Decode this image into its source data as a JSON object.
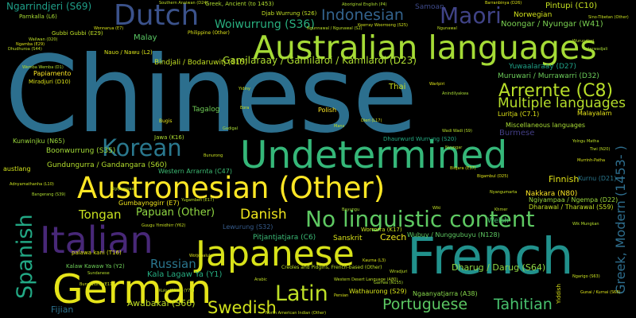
{
  "words": [
    {
      "text": "Chinese",
      "color": "#2c6f8e"
    },
    {
      "text": "Australian languages",
      "color": "#a5db36"
    },
    {
      "text": "Dutch",
      "color": "#3b528b"
    },
    {
      "text": "Maori",
      "color": "#404387"
    },
    {
      "text": "Indonesian",
      "color": "#33638d"
    },
    {
      "text": "Undetermined",
      "color": "#35b779"
    },
    {
      "text": "Austronesian (Other)",
      "color": "#fde725"
    },
    {
      "text": "Italian",
      "color": "#482878"
    },
    {
      "text": "Japanese",
      "color": "#d8e219"
    },
    {
      "text": "French",
      "color": "#21918c"
    },
    {
      "text": "German",
      "color": "#e5e419"
    },
    {
      "text": "Korean",
      "color": "#2a788e"
    },
    {
      "text": "No linguistic content",
      "color": "#5ec962"
    },
    {
      "text": "Latin",
      "color": "#bddf26"
    },
    {
      "text": "Spanish",
      "color": "#22a884"
    },
    {
      "text": "Arrernte (C8)",
      "color": "#b8de29"
    },
    {
      "text": "Multiple languages",
      "color": "#b5de2b"
    },
    {
      "text": "Portuguese",
      "color": "#5cc863"
    },
    {
      "text": "Tahitian",
      "color": "#48c16e"
    },
    {
      "text": "Swedish",
      "color": "#d0e11c"
    },
    {
      "text": "Danish",
      "color": "#efe51c"
    },
    {
      "text": "Russian",
      "color": "#2a768e"
    },
    {
      "text": "Tongan",
      "color": "#c8e020"
    },
    {
      "text": "Greek, Modern (1453- )",
      "color": "#2e6e8e"
    },
    {
      "text": "Papuan (Other)",
      "color": "#90d743"
    },
    {
      "text": "Gamilaraay / Gamilaroi / Kamilaroi (D23)",
      "color": "#addc30"
    },
    {
      "text": "Ngarrindjeri (S69)",
      "color": "#1f9f88"
    },
    {
      "text": "Woiwurrung (S36)",
      "color": "#29af7f"
    },
    {
      "text": "Noongar / Nyungar (W41)",
      "color": "#7ad151"
    },
    {
      "text": "Muruwari / Murrawarri (D32)",
      "color": "#6ccd5a"
    },
    {
      "text": "Dharug / Darug (S64)",
      "color": "#8fd744"
    },
    {
      "text": "Bindjali / Bodaruwitj (S15)",
      "color": "#c2df23"
    },
    {
      "text": "Norwegian",
      "color": "#d2e21b"
    },
    {
      "text": "Pintupi (C10)",
      "color": "#c5e021"
    },
    {
      "text": "Malay",
      "color": "#5ac864"
    },
    {
      "text": "Gumbaynggirr (E7)",
      "color": "#f1e51d"
    },
    {
      "text": "Yuwaalaraay (D27)",
      "color": "#1fa187"
    },
    {
      "text": "Burmese",
      "color": "#433e85"
    },
    {
      "text": "Nakkara (N80)",
      "color": "#fde725"
    },
    {
      "text": "Kala Lagaw Ya (Y1)",
      "color": "#26ad81"
    },
    {
      "text": "Awabakal (S66)",
      "color": "#c0df25"
    },
    {
      "text": "Fijian",
      "color": "#2c728e"
    },
    {
      "text": "Boonwurrung (S35)",
      "color": "#a2da37"
    },
    {
      "text": "Gundungurra / Gandangara (S60)",
      "color": "#b2dd2d"
    },
    {
      "text": "Western Arrarnta (C47)",
      "color": "#3dbc74"
    },
    {
      "text": "Finnish",
      "color": "#e2e418"
    },
    {
      "text": "Welsh",
      "color": "#46c06f"
    },
    {
      "text": "Czech",
      "color": "#ece51b"
    },
    {
      "text": "Sanskrit",
      "color": "#d8e219"
    },
    {
      "text": "Polish",
      "color": "#fde725"
    },
    {
      "text": "Thai",
      "color": "#c8e020"
    },
    {
      "text": "Tagalog",
      "color": "#70cf57"
    },
    {
      "text": "Miscellaneous languages",
      "color": "#a8db34"
    },
    {
      "text": "Luritja (C7.1)",
      "color": "#dde318"
    },
    {
      "text": "Malayalam",
      "color": "#e7e419"
    },
    {
      "text": "Pitjantjatjara (C6)",
      "color": "#3aba76"
    },
    {
      "text": "Lewurung (S32)",
      "color": "#365c8d"
    },
    {
      "text": "Dhaurwurd Wurrung (S20)",
      "color": "#24aa83"
    },
    {
      "text": "Ngiyampaa / Ngempa (D22)",
      "color": "#9bd93c"
    },
    {
      "text": "Dharawal / Tharawal (S59)",
      "color": "#c2df23"
    },
    {
      "text": "Wubuy / Nunggubuyu (N128)",
      "color": "#5ec962"
    },
    {
      "text": "Wathaurong (S29)",
      "color": "#d5e21a"
    },
    {
      "text": "Ngaanyatjarra (A38)",
      "color": "#85d54a"
    },
    {
      "text": "Kalaw Kawaw Ya (Y2)",
      "color": "#6ece58"
    },
    {
      "text": "palawa kani (T16)",
      "color": "#dde318"
    },
    {
      "text": "Papiamento",
      "color": "#fde725"
    },
    {
      "text": "Miradjuri (D10)",
      "color": "#dde318"
    },
    {
      "text": "Kunwinjku (N65)",
      "color": "#9bd93c"
    },
    {
      "text": "Samoan",
      "color": "#3e4a89"
    },
    {
      "text": "Djab Wurrung (S26)",
      "color": "#c0df25"
    },
    {
      "text": "Greek, Ancient (to 1453)",
      "color": "#addc30"
    },
    {
      "text": "Parnkalla (L6)",
      "color": "#a8db34"
    },
    {
      "text": "Gubbi Gubbi (E29)",
      "color": "#bddf26"
    },
    {
      "text": "Nauo / Nawu (L2)",
      "color": "#d8e219"
    },
    {
      "text": "Philippine (Other)",
      "color": "#dde318"
    },
    {
      "text": "Kurnu (D21)",
      "color": "#2a788e"
    },
    {
      "text": "Worrorra (K17)",
      "color": "#c8e020"
    },
    {
      "text": "Yiddish",
      "color": "#dde318"
    },
    {
      "text": "Creoles and Pidgins, French-based (Other)",
      "color": "#bddf26"
    },
    {
      "text": "Jawa (K16)",
      "color": "#addc30"
    },
    {
      "text": "Bugis",
      "color": "#e7e419"
    },
    {
      "text": "austlang",
      "color": "#d0e11c"
    }
  ],
  "tiny_words": [
    {
      "text": "Southern Anaiwan (D24)",
      "color": "#c0df25"
    },
    {
      "text": "Aboriginal English (P4)",
      "color": "#addc30"
    },
    {
      "text": "Barranbinya (D26)",
      "color": "#dde318"
    },
    {
      "text": "Sino-Tibetan (Other)",
      "color": "#c8e020"
    },
    {
      "text": "Ngunnawal / Ngunawal (S2)",
      "color": "#bddf26"
    },
    {
      "text": "Keerray Woorroong (S25)",
      "color": "#d0e11c"
    },
    {
      "text": "Wurundjeri",
      "color": "#b8de29"
    },
    {
      "text": "Jarwadjali",
      "color": "#a8db34"
    },
    {
      "text": "Ngunawal",
      "color": "#c2df23"
    },
    {
      "text": "Ngamba (E29)",
      "color": "#dde318"
    },
    {
      "text": "Wonnarua (E7)",
      "color": "#d8e219"
    },
    {
      "text": "Dhudhuroa (S44)",
      "color": "#c0df25"
    },
    {
      "text": "Wailwan (D20)",
      "color": "#bddf26"
    },
    {
      "text": "Wemba Wemba (D1)",
      "color": "#b5de2b"
    },
    {
      "text": "Adnyamathanha (L10)",
      "color": "#c8e020"
    },
    {
      "text": "Bundjalung (E11)",
      "color": "#d0e11c"
    },
    {
      "text": "Gunai / Kurnai (S68)",
      "color": "#dde318"
    },
    {
      "text": "Ngarigo (S63)",
      "color": "#c8e020"
    },
    {
      "text": "Wiradjuri",
      "color": "#bddf26"
    },
    {
      "text": "Kaurna (L3)",
      "color": "#d8e219"
    },
    {
      "text": "Western Desert Language (A80)",
      "color": "#c0df25"
    },
    {
      "text": "North American Indian (Other)",
      "color": "#c8e020"
    },
    {
      "text": "Bangerang (S39)",
      "color": "#addc30"
    },
    {
      "text": "Wadi Wadi (S9)",
      "color": "#b8de29"
    },
    {
      "text": "Persian",
      "color": "#d8e219"
    },
    {
      "text": "Arabic",
      "color": "#c2df23"
    },
    {
      "text": "Bayungu",
      "color": "#a8db34"
    },
    {
      "text": "Khmer",
      "color": "#c0df25"
    },
    {
      "text": "Sundanese",
      "color": "#b5de2b"
    },
    {
      "text": "Eora",
      "color": "#d0e11c"
    },
    {
      "text": "Guugu Yimidhirr (Y62)",
      "color": "#c8e020"
    },
    {
      "text": "Bigambul (D25)",
      "color": "#dde318"
    },
    {
      "text": "Wiki",
      "color": "#c2df23"
    },
    {
      "text": "Gadigal",
      "color": "#a8db34"
    },
    {
      "text": "Yugambeh (E17)",
      "color": "#bddf26"
    },
    {
      "text": "Dieri (L17)",
      "color": "#d8e219"
    },
    {
      "text": "Manx",
      "color": "#c0df25"
    },
    {
      "text": "Nyungar",
      "color": "#b8de29"
    },
    {
      "text": "Bunurong",
      "color": "#c8e020"
    },
    {
      "text": "Wotjobaluk",
      "color": "#dde318"
    },
    {
      "text": "Bidjara (E37)",
      "color": "#d0e11c"
    },
    {
      "text": "Garrwa (N155)",
      "color": "#addc30"
    },
    {
      "text": "Kuku Yalanji (Y78)",
      "color": "#c2df23"
    },
    {
      "text": "Wik Mungkan",
      "color": "#b5de2b"
    },
    {
      "text": "Nyangumarta",
      "color": "#c8e020"
    },
    {
      "text": "Yolngu Matha",
      "color": "#bddf26"
    },
    {
      "text": "Murrinh-Patha",
      "color": "#d8e219"
    },
    {
      "text": "Tiwi (N20)",
      "color": "#c0df25"
    },
    {
      "text": "Warlpiri",
      "color": "#dde318"
    },
    {
      "text": "Anindilyakwa",
      "color": "#a8db34"
    },
    {
      "text": "Yidiny",
      "color": "#c8e020"
    },
    {
      "text": "Ngiyampaa",
      "color": "#b8de29"
    }
  ]
}
